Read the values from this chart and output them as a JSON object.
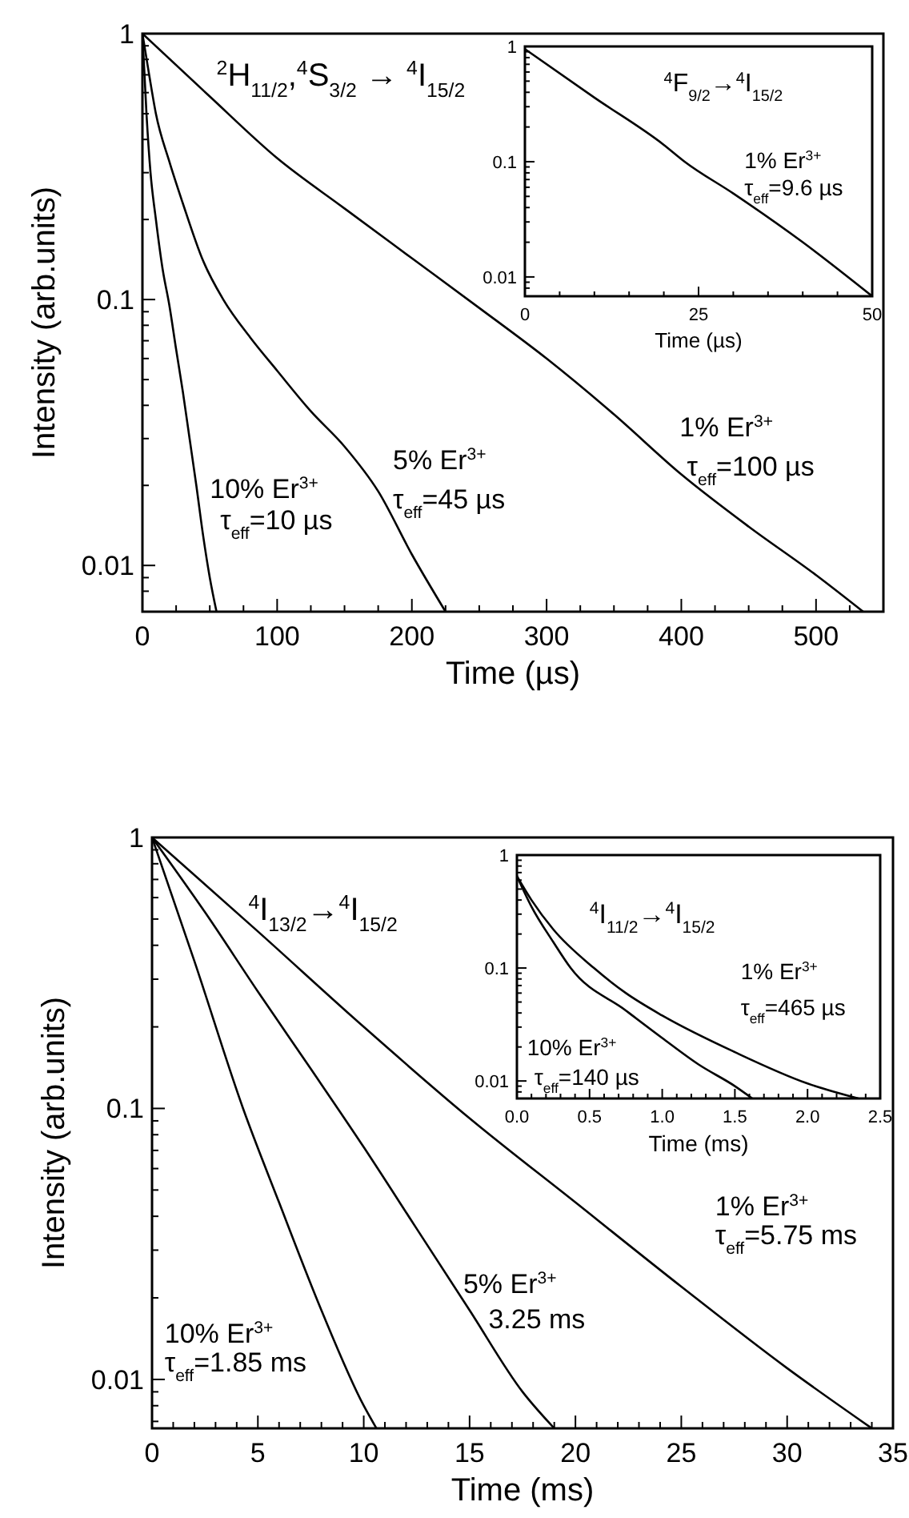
{
  "chart_data": [
    {
      "type": "line",
      "title": "$^{2}$H$_{11/2}$,$^{4}$S$_{3/2}$ → $^{4}$I$_{15/2}$",
      "xlabel": "Time (µs)",
      "ylabel": "Intensity (arb.units)",
      "log": "y",
      "xlim": [
        0,
        550
      ],
      "ylim": [
        0.0067,
        1
      ],
      "xticks": [
        0,
        {
          "value": 25,
          "label": null
        },
        {
          "value": 50,
          "label": null
        },
        {
          "value": 75,
          "label": null
        },
        100,
        {
          "value": 125,
          "label": null
        },
        {
          "value": 150,
          "label": null
        },
        {
          "value": 175,
          "label": null
        },
        200,
        {
          "value": 225,
          "label": null
        },
        {
          "value": 250,
          "label": null
        },
        {
          "value": 275,
          "label": null
        },
        300,
        {
          "value": 325,
          "label": null
        },
        {
          "value": 350,
          "label": null
        },
        {
          "value": 375,
          "label": null
        },
        400,
        {
          "value": 425,
          "label": null
        },
        {
          "value": 450,
          "label": null
        },
        {
          "value": 475,
          "label": null
        },
        500,
        {
          "value": 525,
          "label": null
        }
      ],
      "yticks": [
        {
          "value": 0.008,
          "label": null
        },
        {
          "value": 0.009,
          "label": null
        },
        0.01,
        {
          "value": 0.02,
          "label": null
        },
        {
          "value": 0.03,
          "label": null
        },
        {
          "value": 0.04,
          "label": null
        },
        {
          "value": 0.05,
          "label": null
        },
        {
          "value": 0.06,
          "label": null
        },
        {
          "value": 0.07,
          "label": null
        },
        {
          "value": 0.08,
          "label": null
        },
        {
          "value": 0.09,
          "label": null
        },
        0.1,
        {
          "value": 0.2,
          "label": null
        },
        {
          "value": 0.3,
          "label": null
        },
        {
          "value": 0.4,
          "label": null
        },
        {
          "value": 0.5,
          "label": null
        },
        {
          "value": 0.6,
          "label": null
        },
        {
          "value": 0.7,
          "label": null
        },
        {
          "value": 0.8,
          "label": null
        },
        {
          "value": 0.9,
          "label": null
        },
        1
      ],
      "series": [
        {
          "color": "#000000",
          "x": [
            0,
            50,
            100,
            150,
            200,
            250,
            300,
            350,
            400,
            450,
            500,
            535
          ],
          "values": [
            1,
            0.58,
            0.34,
            0.22,
            0.143,
            0.093,
            0.06,
            0.037,
            0.022,
            0.014,
            0.0092,
            0.0067
          ]
        },
        {
          "color": "#000000",
          "x": [
            0,
            5,
            10,
            20,
            30,
            45,
            60,
            80,
            100,
            125,
            150,
            175,
            200,
            225
          ],
          "values": [
            1,
            0.7,
            0.5,
            0.33,
            0.23,
            0.14,
            0.1,
            0.072,
            0.054,
            0.038,
            0.028,
            0.019,
            0.011,
            0.0067
          ]
        },
        {
          "color": "#000000",
          "x": [
            0,
            3,
            6,
            10,
            15,
            20,
            25,
            30,
            35,
            40,
            45,
            50,
            55
          ],
          "values": [
            1,
            0.5,
            0.3,
            0.2,
            0.13,
            0.095,
            0.065,
            0.045,
            0.03,
            0.02,
            0.013,
            0.009,
            0.0067
          ]
        }
      ],
      "annotations": [
        "10% Er$^{3+}$",
        "τ$_{eff}$=10 µs",
        "5% Er$^{3+}$",
        "τ$_{eff}$=45 µs",
        "1% Er$^{3+}$",
        "τ$_{eff}$=100 µs"
      ]
    },
    {
      "type": "line",
      "title": "$^{4}$F$_{9/2}$→$^{4}$I$_{15/2}$",
      "xlabel": "Time (µs)",
      "log": "y",
      "xlim": [
        0,
        50
      ],
      "ylim": [
        0.0068,
        1
      ],
      "xticks": [
        0,
        {
          "value": 5,
          "label": null
        },
        {
          "value": 10,
          "label": null
        },
        {
          "value": 15,
          "label": null
        },
        {
          "value": 20,
          "label": null
        },
        25,
        {
          "value": 30,
          "label": null
        },
        {
          "value": 35,
          "label": null
        },
        {
          "value": 40,
          "label": null
        },
        {
          "value": 45,
          "label": null
        },
        50
      ],
      "yticks": [
        {
          "value": 0.008,
          "label": null
        },
        {
          "value": 0.009,
          "label": null
        },
        0.01,
        {
          "value": 0.02,
          "label": null
        },
        {
          "value": 0.03,
          "label": null
        },
        {
          "value": 0.04,
          "label": null
        },
        {
          "value": 0.05,
          "label": null
        },
        {
          "value": 0.06,
          "label": null
        },
        {
          "value": 0.07,
          "label": null
        },
        {
          "value": 0.08,
          "label": null
        },
        {
          "value": 0.09,
          "label": null
        },
        0.1,
        {
          "value": 0.2,
          "label": null
        },
        {
          "value": 0.3,
          "label": null
        },
        {
          "value": 0.4,
          "label": null
        },
        {
          "value": 0.5,
          "label": null
        },
        {
          "value": 0.6,
          "label": null
        },
        {
          "value": 0.7,
          "label": null
        },
        {
          "value": 0.8,
          "label": null
        },
        {
          "value": 0.9,
          "label": null
        },
        1
      ],
      "series": [
        {
          "color": "#000000",
          "x": [
            0,
            10,
            20,
            23,
            30,
            40,
            50
          ],
          "values": [
            0.95,
            0.36,
            0.14,
            0.1,
            0.053,
            0.02,
            0.0068
          ]
        }
      ],
      "annotations": [
        "1% Er$^{3+}$",
        "τ$_{eff}$=9.6 µs"
      ]
    },
    {
      "type": "line",
      "title": "$^{4}$I$_{13/2}$→$^{4}$I$_{15/2}$",
      "xlabel": "Time (ms)",
      "ylabel": "Intensity (arb.units)",
      "log": "y",
      "xlim": [
        0,
        35
      ],
      "ylim": [
        0.0066,
        1
      ],
      "xticks": [
        0,
        {
          "value": 1,
          "label": null
        },
        {
          "value": 2,
          "label": null
        },
        {
          "value": 3,
          "label": null
        },
        {
          "value": 4,
          "label": null
        },
        5,
        {
          "value": 6,
          "label": null
        },
        {
          "value": 7,
          "label": null
        },
        {
          "value": 8,
          "label": null
        },
        {
          "value": 9,
          "label": null
        },
        10,
        {
          "value": 11,
          "label": null
        },
        {
          "value": 12,
          "label": null
        },
        {
          "value": 13,
          "label": null
        },
        {
          "value": 14,
          "label": null
        },
        15,
        {
          "value": 16,
          "label": null
        },
        {
          "value": 17,
          "label": null
        },
        {
          "value": 18,
          "label": null
        },
        {
          "value": 19,
          "label": null
        },
        20,
        {
          "value": 21,
          "label": null
        },
        {
          "value": 22,
          "label": null
        },
        {
          "value": 23,
          "label": null
        },
        {
          "value": 24,
          "label": null
        },
        25,
        {
          "value": 26,
          "label": null
        },
        {
          "value": 27,
          "label": null
        },
        {
          "value": 28,
          "label": null
        },
        {
          "value": 29,
          "label": null
        },
        30,
        {
          "value": 31,
          "label": null
        },
        {
          "value": 32,
          "label": null
        },
        {
          "value": 33,
          "label": null
        },
        {
          "value": 34,
          "label": null
        },
        35
      ],
      "yticks": [
        {
          "value": 0.007,
          "label": null
        },
        {
          "value": 0.008,
          "label": null
        },
        {
          "value": 0.009,
          "label": null
        },
        0.01,
        {
          "value": 0.02,
          "label": null
        },
        {
          "value": 0.03,
          "label": null
        },
        {
          "value": 0.04,
          "label": null
        },
        {
          "value": 0.05,
          "label": null
        },
        {
          "value": 0.06,
          "label": null
        },
        {
          "value": 0.07,
          "label": null
        },
        {
          "value": 0.08,
          "label": null
        },
        {
          "value": 0.09,
          "label": null
        },
        0.1,
        {
          "value": 0.2,
          "label": null
        },
        {
          "value": 0.3,
          "label": null
        },
        {
          "value": 0.4,
          "label": null
        },
        {
          "value": 0.5,
          "label": null
        },
        {
          "value": 0.6,
          "label": null
        },
        {
          "value": 0.7,
          "label": null
        },
        {
          "value": 0.8,
          "label": null
        },
        {
          "value": 0.9,
          "label": null
        },
        1
      ],
      "series": [
        {
          "color": "#000000",
          "x": [
            0,
            5,
            10,
            15,
            20,
            25,
            30,
            34
          ],
          "values": [
            1,
            0.45,
            0.2,
            0.092,
            0.045,
            0.022,
            0.011,
            0.0066
          ]
        },
        {
          "color": "#000000",
          "x": [
            0,
            2.5,
            5,
            7.5,
            10,
            12.5,
            15,
            17.5,
            19
          ],
          "values": [
            1,
            0.53,
            0.27,
            0.14,
            0.072,
            0.036,
            0.018,
            0.009,
            0.0066
          ]
        },
        {
          "color": "#000000",
          "x": [
            0,
            2,
            4.3,
            6,
            8,
            10,
            10.6
          ],
          "values": [
            1,
            0.35,
            0.1,
            0.045,
            0.018,
            0.008,
            0.0066
          ]
        }
      ],
      "annotations": [
        "10% Er$^{3+}$",
        "τ$_{eff}$=1.85 ms",
        "5% Er$^{3+}$",
        "3.25 ms",
        "1% Er$^{3+}$",
        "τ$_{eff}$=5.75 ms"
      ]
    },
    {
      "type": "line",
      "title": "$^{4}$I$_{11/2}$→$^{4}$I$_{15/2}$",
      "xlabel": "Time (ms)",
      "log": "y",
      "xlim": [
        0,
        2.5
      ],
      "ylim": [
        0.007,
        1
      ],
      "xticks": [
        {
          "value": 0,
          "label": "0.0"
        },
        {
          "value": 0.1,
          "label": null
        },
        {
          "value": 0.2,
          "label": null
        },
        {
          "value": 0.3,
          "label": null
        },
        {
          "value": 0.4,
          "label": null
        },
        0.5,
        {
          "value": 0.6,
          "label": null
        },
        {
          "value": 0.7,
          "label": null
        },
        {
          "value": 0.8,
          "label": null
        },
        {
          "value": 0.9,
          "label": null
        },
        {
          "value": 1,
          "label": "1.0"
        },
        {
          "value": 1.1,
          "label": null
        },
        {
          "value": 1.2,
          "label": null
        },
        {
          "value": 1.3,
          "label": null
        },
        {
          "value": 1.4,
          "label": null
        },
        1.5,
        {
          "value": 1.6,
          "label": null
        },
        {
          "value": 1.7,
          "label": null
        },
        {
          "value": 1.8,
          "label": null
        },
        {
          "value": 1.9,
          "label": null
        },
        {
          "value": 2,
          "label": "2.0"
        },
        {
          "value": 2.1,
          "label": null
        },
        {
          "value": 2.2,
          "label": null
        },
        {
          "value": 2.3,
          "label": null
        },
        {
          "value": 2.4,
          "label": null
        },
        2.5
      ],
      "yticks": [
        {
          "value": 0.008,
          "label": null
        },
        {
          "value": 0.009,
          "label": null
        },
        0.01,
        {
          "value": 0.02,
          "label": null
        },
        {
          "value": 0.03,
          "label": null
        },
        {
          "value": 0.04,
          "label": null
        },
        {
          "value": 0.05,
          "label": null
        },
        {
          "value": 0.06,
          "label": null
        },
        {
          "value": 0.07,
          "label": null
        },
        {
          "value": 0.08,
          "label": null
        },
        {
          "value": 0.09,
          "label": null
        },
        0.1,
        {
          "value": 0.2,
          "label": null
        },
        {
          "value": 0.3,
          "label": null
        },
        {
          "value": 0.4,
          "label": null
        },
        {
          "value": 0.5,
          "label": null
        },
        {
          "value": 0.6,
          "label": null
        },
        {
          "value": 0.7,
          "label": null
        },
        {
          "value": 0.8,
          "label": null
        },
        {
          "value": 0.9,
          "label": null
        },
        1
      ],
      "series": [
        {
          "color": "#000000",
          "x": [
            0,
            0.1,
            0.25,
            0.53,
            0.75,
            1,
            1.5,
            2,
            2.35
          ],
          "values": [
            0.65,
            0.4,
            0.22,
            0.1,
            0.06,
            0.038,
            0.018,
            0.0095,
            0.007
          ]
        },
        {
          "color": "#000000",
          "x": [
            0,
            0.1,
            0.25,
            0.37,
            0.75,
            1,
            1.25,
            1.5,
            1.62
          ],
          "values": [
            0.65,
            0.35,
            0.17,
            0.1,
            0.042,
            0.024,
            0.014,
            0.009,
            0.007
          ]
        }
      ],
      "annotations": [
        "1% Er$^{3+}$",
        "τ$_{eff}$=465 µs",
        "10% Er$^{3+}$",
        "τ$_{eff}$=140 µs"
      ]
    }
  ]
}
